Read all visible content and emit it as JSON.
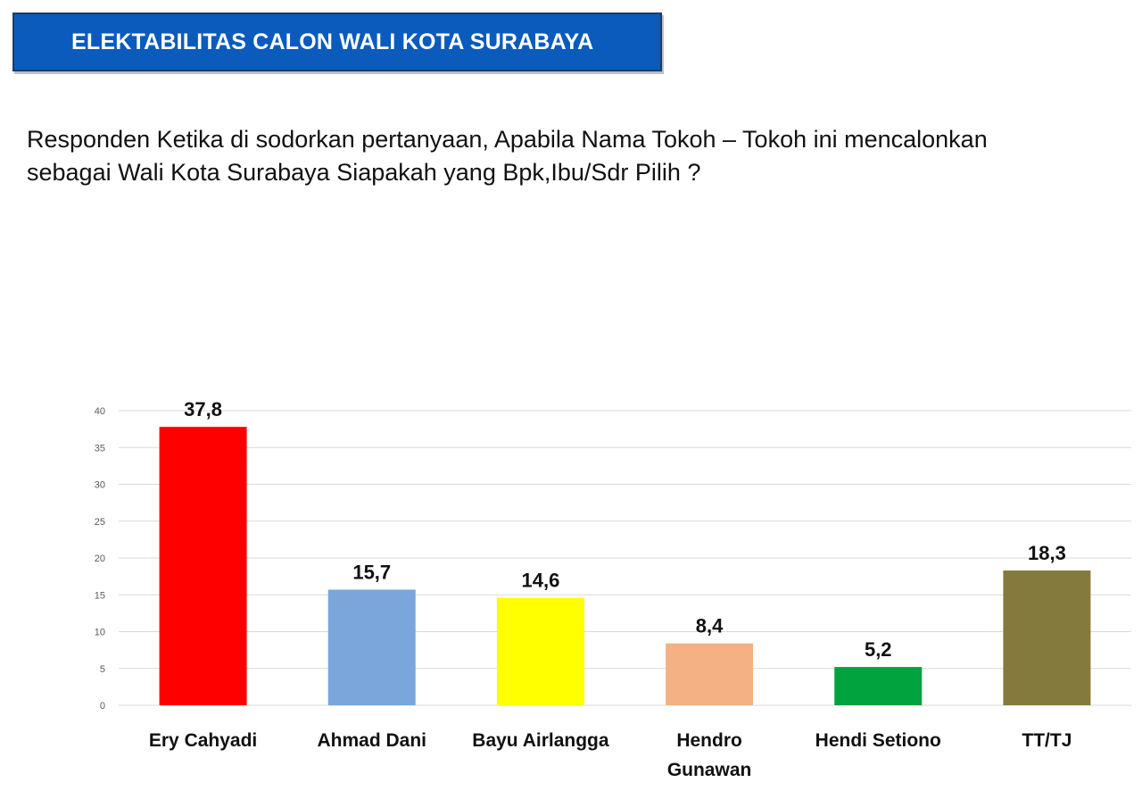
{
  "header": {
    "title": "ELEKTABILITAS CALON WALI KOTA SURABAYA"
  },
  "question": {
    "line1": "Responden Ketika di sodorkan pertanyaan, Apabila Nama Tokoh – Tokoh  ini mencalonkan",
    "line2": "sebagai Wali Kota Surabaya Siapakah yang Bpk,Ibu/Sdr Pilih ?"
  },
  "chart_data": {
    "type": "bar",
    "categories": [
      "Ery Cahyadi",
      "Ahmad Dani",
      "Bayu Airlangga",
      "Hendro Gunawan",
      "Hendi Setiono",
      "TT/TJ"
    ],
    "category_lines": [
      [
        "Ery Cahyadi"
      ],
      [
        "Ahmad Dani"
      ],
      [
        "Bayu Airlangga"
      ],
      [
        "Hendro",
        "Gunawan"
      ],
      [
        "Hendi Setiono"
      ],
      [
        "TT/TJ"
      ]
    ],
    "values": [
      37.8,
      15.7,
      14.6,
      8.4,
      5.2,
      18.3
    ],
    "value_labels": [
      "37,8",
      "15,7",
      "14,6",
      "8,4",
      "5,2",
      "18,3"
    ],
    "colors": [
      "#ff0000",
      "#7aa6dc",
      "#ffff00",
      "#f4b183",
      "#00a33d",
      "#857a3e"
    ],
    "ylim": [
      0,
      40
    ],
    "yticks": [
      0,
      5,
      10,
      15,
      20,
      25,
      30,
      35,
      40
    ],
    "grid": true,
    "legend": "none"
  }
}
